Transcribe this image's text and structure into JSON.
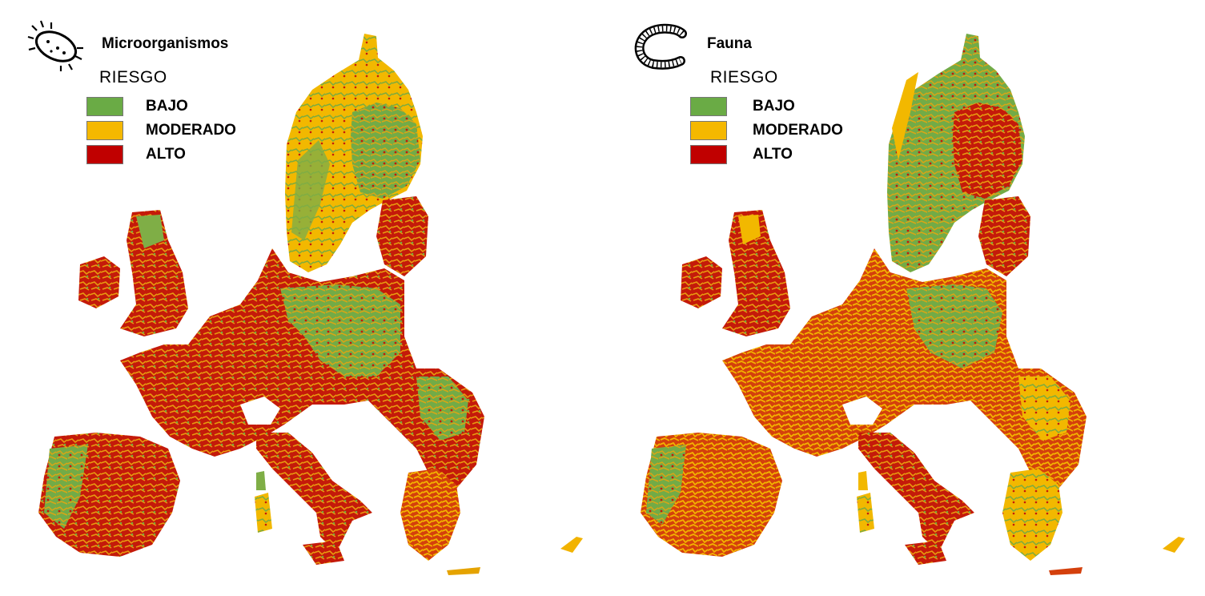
{
  "panels": [
    {
      "title": "Microorganismos",
      "icon": "bacterium-icon",
      "legend_title": "RIESGO",
      "legend": [
        {
          "label": "BAJO",
          "color": "#6aab45"
        },
        {
          "label": "MODERADO",
          "color": "#f5b800"
        },
        {
          "label": "ALTO",
          "color": "#c00000"
        }
      ]
    },
    {
      "title": "Fauna",
      "icon": "worm-icon",
      "legend_title": "RIESGO",
      "legend": [
        {
          "label": "BAJO",
          "color": "#6aab45"
        },
        {
          "label": "MODERADO",
          "color": "#f5b800"
        },
        {
          "label": "ALTO",
          "color": "#c00000"
        }
      ]
    }
  ],
  "colors": {
    "low": "#6aab45",
    "moderate": "#f5b800",
    "high": "#c00000"
  }
}
